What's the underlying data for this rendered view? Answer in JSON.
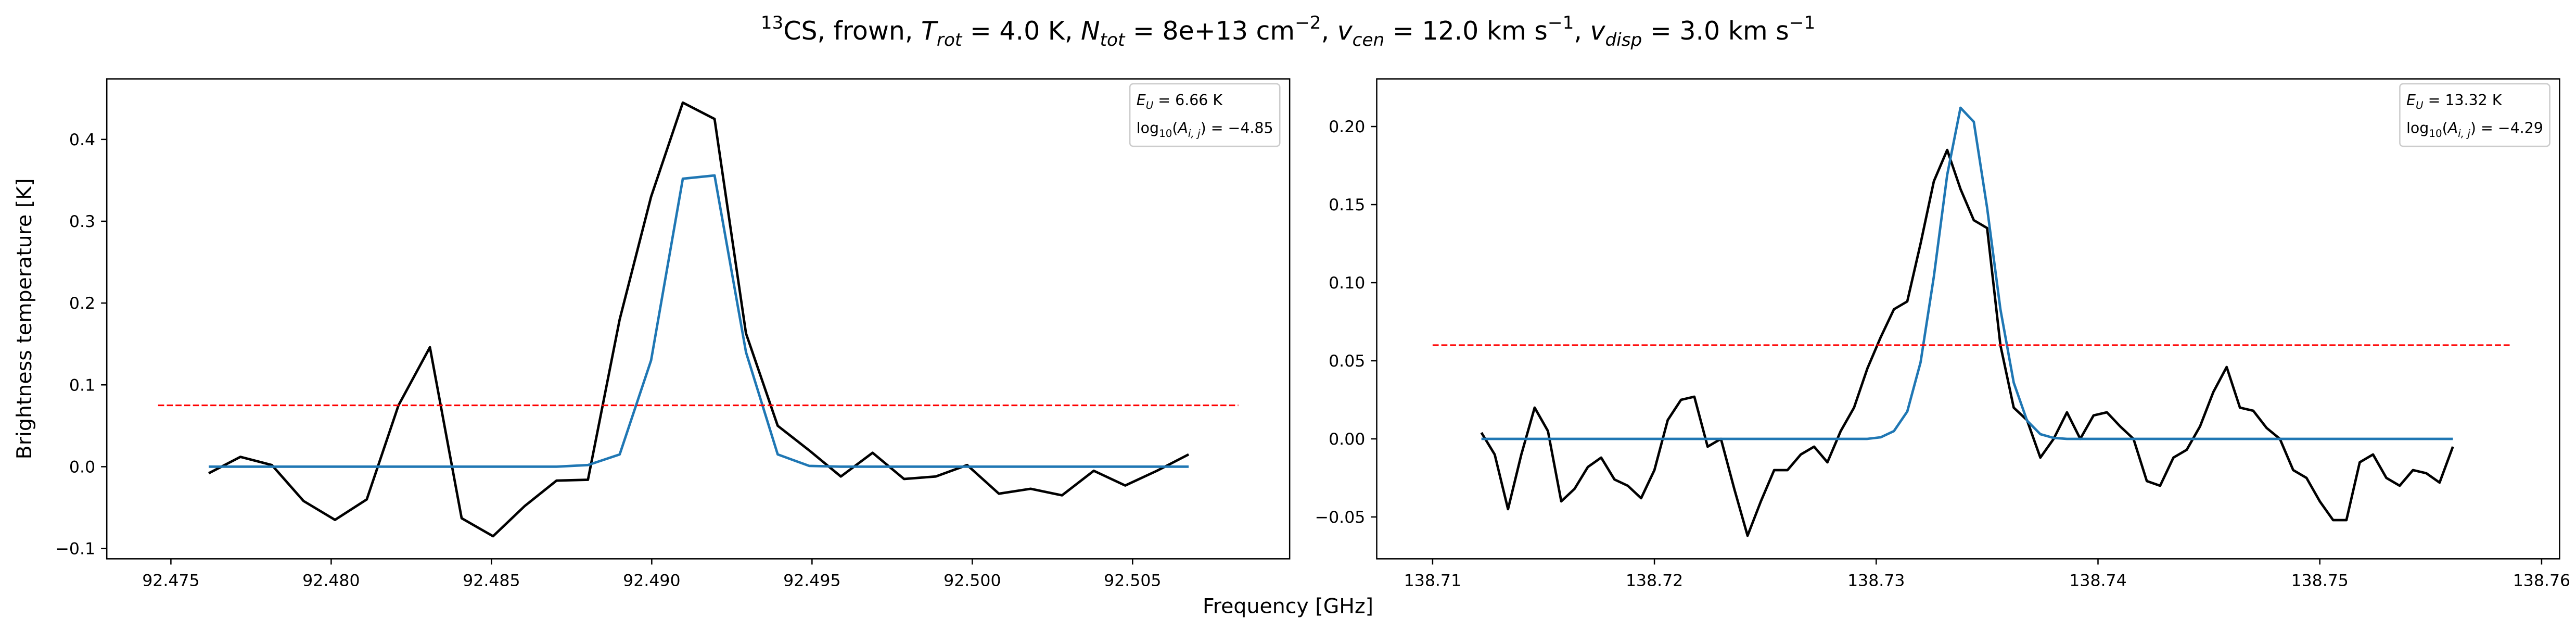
{
  "figure": {
    "title_parts": [
      [
        "13",
        "sup"
      ],
      [
        "CS, frown, ",
        "normal"
      ],
      [
        "T",
        "italic"
      ],
      [
        "rot",
        "sub-italic"
      ],
      [
        " =  4.0 K, ",
        "normal"
      ],
      [
        "N",
        "italic"
      ],
      [
        "tot",
        "sub-italic"
      ],
      [
        " =  8e+13 cm",
        "normal"
      ],
      [
        "−2",
        "sup"
      ],
      [
        ", ",
        "normal"
      ],
      [
        "v",
        "italic"
      ],
      [
        "cen",
        "sub-italic"
      ],
      [
        " =  12.0 km s",
        "normal"
      ],
      [
        "−1",
        "sup"
      ],
      [
        ", ",
        "normal"
      ],
      [
        "v",
        "italic"
      ],
      [
        "disp",
        "sub-italic"
      ],
      [
        " =  3.0 km s",
        "normal"
      ],
      [
        "−1",
        "sup"
      ]
    ],
    "xlabel": "Frequency [GHz]",
    "ylabel": "Brightness temperature [K]"
  },
  "chart_data": [
    {
      "type": "line",
      "annotation_lines": [
        [
          [
            "E",
            "italic"
          ],
          [
            "U",
            "sub-italic"
          ],
          [
            " = 6.66 K",
            "normal"
          ]
        ],
        [
          [
            "log",
            "normal"
          ],
          [
            "10",
            "sub"
          ],
          [
            "(",
            "normal"
          ],
          [
            "A",
            "italic"
          ],
          [
            "i, j",
            "sub-italic"
          ],
          [
            ") = −4.85",
            "normal"
          ]
        ]
      ],
      "xlim": [
        92.473,
        92.5099
      ],
      "ylim": [
        -0.1126,
        0.474
      ],
      "xticks": [
        92.475,
        {
          "value": 92.48,
          "label": "92.480"
        },
        92.485,
        {
          "value": 92.49,
          "label": "92.490"
        },
        92.495,
        {
          "value": 92.5,
          "label": "92.500"
        },
        92.505
      ],
      "yticks": [
        {
          "value": -0.1,
          "label": "−0.1"
        },
        {
          "value": 0,
          "label": "0.0"
        },
        0.1,
        0.2,
        0.3,
        0.4
      ],
      "x": [
        92.47618,
        92.47717,
        92.47815,
        92.47914,
        92.48012,
        92.48111,
        92.4821,
        92.48308,
        92.48407,
        92.48505,
        92.48604,
        92.48703,
        92.48801,
        92.489,
        92.48998,
        92.49097,
        92.49196,
        92.49294,
        92.49393,
        92.49491,
        92.4959,
        92.49689,
        92.49787,
        92.49886,
        92.49984,
        92.50083,
        92.50182,
        92.5028,
        92.50379,
        92.50477,
        92.50576,
        92.50675
      ],
      "series": [
        {
          "color": "#000000",
          "values": [
            -0.008,
            0.012,
            0.002,
            -0.042,
            -0.065,
            -0.04,
            0.075,
            0.146,
            -0.063,
            -0.085,
            -0.048,
            -0.017,
            -0.016,
            0.18,
            0.33,
            0.445,
            0.425,
            0.163,
            0.05,
            0.02,
            -0.012,
            0.017,
            -0.015,
            -0.012,
            0.002,
            -0.033,
            -0.027,
            -0.035,
            -0.005,
            -0.023,
            -0.005,
            0.015
          ]
        },
        {
          "color": "#1f77b4",
          "values": [
            0,
            0,
            0,
            0,
            0,
            0,
            0,
            0,
            0,
            0,
            0,
            0,
            0.002,
            0.015,
            0.13,
            0.352,
            0.356,
            0.14,
            0.015,
            0.001,
            0,
            0,
            0,
            0,
            0,
            0,
            0,
            0,
            0,
            0,
            0,
            0
          ]
        },
        {
          "color": "#ff0000",
          "dashed": true,
          "x": [
            92.4746,
            92.5083
          ],
          "values": [
            0.075,
            0.075
          ]
        }
      ]
    },
    {
      "type": "line",
      "annotation_lines": [
        [
          [
            "E",
            "italic"
          ],
          [
            "U",
            "sub-italic"
          ],
          [
            " = 13.32 K",
            "normal"
          ]
        ],
        [
          [
            "log",
            "normal"
          ],
          [
            "10",
            "sub"
          ],
          [
            "(",
            "normal"
          ],
          [
            "A",
            "italic"
          ],
          [
            "i, j",
            "sub-italic"
          ],
          [
            ") = −4.29",
            "normal"
          ]
        ]
      ],
      "xlim": [
        138.70748,
        138.76081
      ],
      "ylim": [
        -0.0768,
        0.2305
      ],
      "xticks": [
        138.71,
        138.72,
        138.73,
        138.74,
        138.75,
        138.76
      ],
      "yticks": [
        {
          "value": -0.05,
          "label": "−0.05"
        },
        {
          "value": 0,
          "label": "0.00"
        },
        0.05,
        {
          "value": 0.1,
          "label": "0.10"
        },
        0.15,
        {
          "value": 0.2,
          "label": "0.20"
        }
      ],
      "x": [
        138.7122,
        138.7128,
        138.7134,
        138.714,
        138.7146,
        138.7152,
        138.7158,
        138.7164,
        138.717,
        138.7176,
        138.7182,
        138.7188,
        138.7194,
        138.72,
        138.7206,
        138.7212,
        138.7218,
        138.7224,
        138.723,
        138.7236,
        138.7242,
        138.7248,
        138.7254,
        138.726,
        138.7266,
        138.7272,
        138.7278,
        138.7284,
        138.729,
        138.7296,
        138.7302,
        138.7308,
        138.7314,
        138.732,
        138.7326,
        138.7332,
        138.7338,
        138.7344,
        138.735,
        138.7356,
        138.7362,
        138.7368,
        138.7374,
        138.738,
        138.7386,
        138.7392,
        138.7398,
        138.7404,
        138.741,
        138.7416,
        138.7422,
        138.7428,
        138.7434,
        138.744,
        138.7446,
        138.7452,
        138.7458,
        138.7464,
        138.747,
        138.7476,
        138.7482,
        138.7488,
        138.7494,
        138.75,
        138.7506,
        138.7512,
        138.7518,
        138.7524,
        138.753,
        138.7536,
        138.7542,
        138.7548,
        138.7554,
        138.756
      ],
      "series": [
        {
          "color": "#000000",
          "values": [
            0.004,
            -0.01,
            -0.045,
            -0.01,
            0.02,
            0.005,
            -0.04,
            -0.032,
            -0.018,
            -0.012,
            -0.026,
            -0.03,
            -0.038,
            -0.02,
            0.012,
            0.025,
            0.027,
            -0.005,
            0,
            -0.032,
            -0.062,
            -0.04,
            -0.02,
            -0.02,
            -0.01,
            -0.005,
            -0.015,
            0.005,
            0.02,
            0.045,
            0.065,
            0.083,
            0.088,
            0.125,
            0.165,
            0.185,
            0.16,
            0.14,
            0.135,
            0.06,
            0.02,
            0.012,
            -0.012,
            0,
            0.017,
            0,
            0.015,
            0.017,
            0.008,
            0,
            -0.027,
            -0.03,
            -0.012,
            -0.007,
            0.008,
            0.03,
            0.046,
            0.02,
            0.018,
            0.007,
            0,
            -0.02,
            -0.025,
            -0.04,
            -0.052,
            -0.052,
            -0.015,
            -0.01,
            -0.025,
            -0.03,
            -0.02,
            -0.022,
            -0.028,
            -0.005
          ]
        },
        {
          "color": "#1f77b4",
          "values": [
            0,
            0,
            0,
            0,
            0,
            0,
            0,
            0,
            0,
            0,
            0,
            0,
            0,
            0,
            0,
            0,
            0,
            0,
            0,
            0,
            0,
            0,
            0,
            0,
            0,
            0,
            0,
            0,
            0,
            0,
            0.001,
            0.005,
            0.0175,
            0.049,
            0.104,
            0.169,
            0.212,
            0.203,
            0.148,
            0.083,
            0.036,
            0.0117,
            0.003,
            0.0006,
            0,
            0,
            0,
            0,
            0,
            0,
            0,
            0,
            0,
            0,
            0,
            0,
            0,
            0,
            0,
            0,
            0,
            0,
            0,
            0,
            0,
            0,
            0,
            0,
            0,
            0,
            0,
            0,
            0,
            0
          ]
        },
        {
          "color": "#ff0000",
          "dashed": true,
          "x": [
            138.71,
            138.7586
          ],
          "values": [
            0.06,
            0.06
          ]
        }
      ]
    }
  ]
}
